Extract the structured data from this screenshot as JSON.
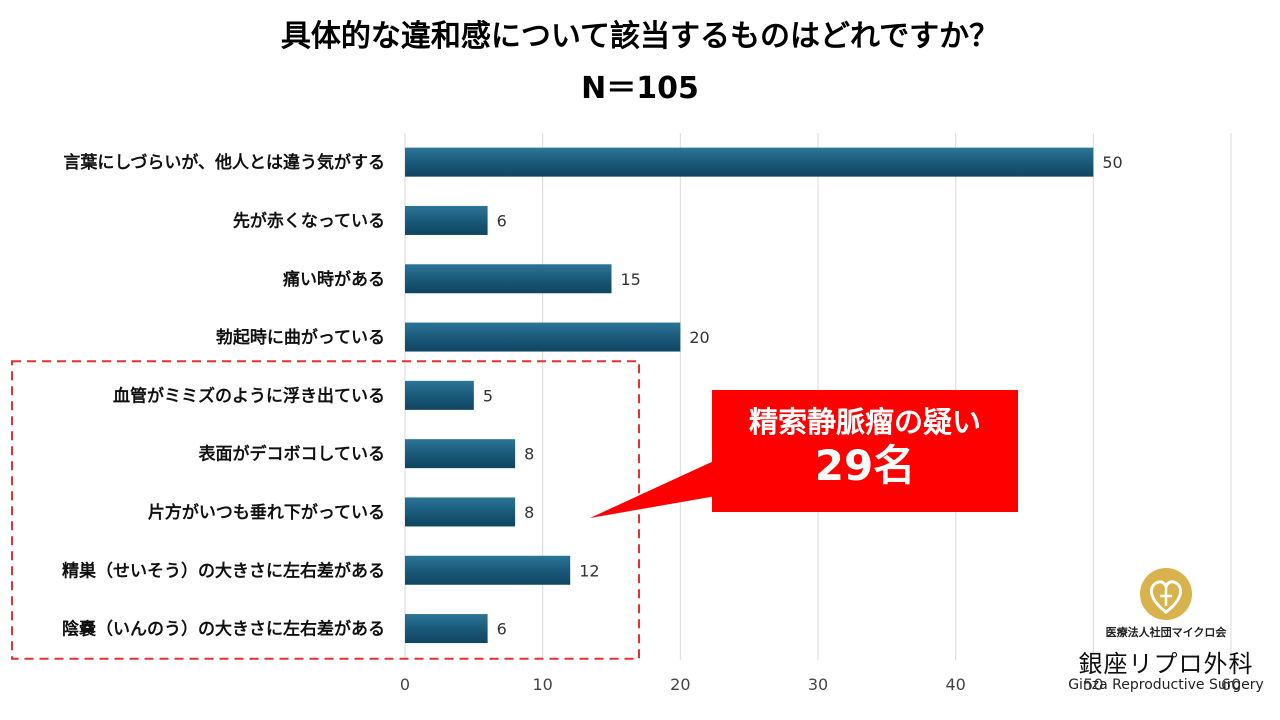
{
  "title": {
    "line1": "具体的な違和感について該当するものはどれですか？",
    "line2": "N＝105"
  },
  "chart_data": {
    "type": "bar",
    "orientation": "horizontal",
    "categories": [
      "言葉にしづらいが、他人とは違う気がする",
      "先が赤くなっている",
      "痛い時がある",
      "勃起時に曲がっている",
      "血管がミミズのように浮き出ている",
      "表面がデコボコしている",
      "片方がいつも垂れ下がっている",
      "精巣（せいそう）の大きさに左右差がある",
      "陰嚢（いんのう）の大きさに左右差がある"
    ],
    "values": [
      50,
      6,
      15,
      20,
      5,
      8,
      8,
      12,
      6
    ],
    "xlim": [
      0,
      60
    ],
    "xticks": [
      0,
      10,
      20,
      30,
      40,
      50,
      60
    ],
    "grid": true,
    "bar_color": "#1a5a7a",
    "highlight_group": [
      4,
      5,
      6,
      7,
      8
    ],
    "highlight_color": "#e53030"
  },
  "callout": {
    "line1": "精索静脈瘤の疑い",
    "line2": "29名",
    "color": "#ff0000"
  },
  "logo": {
    "org": "医療法人社団マイクロ会",
    "name_jp": "銀座リプロ外科",
    "name_en": "Ginza Reproductive Surgery",
    "emblem_color": "#d4b04a"
  }
}
